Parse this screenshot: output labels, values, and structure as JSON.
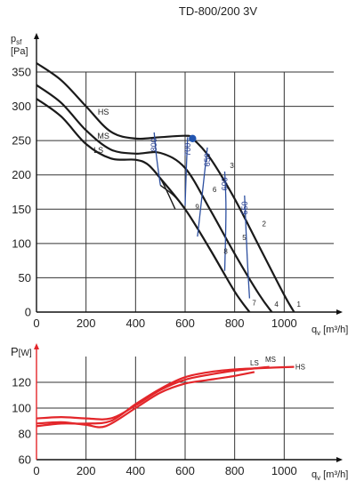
{
  "title": "TD-800/200 3V",
  "colors": {
    "curve": "#1a1a1a",
    "power": "#e3262a",
    "power_axis": "#e3262a",
    "iso": "#2c4fa0",
    "grid": "#333333",
    "point": "#2255b0"
  },
  "chart_data": [
    {
      "type": "line",
      "ylabel": "p",
      "ylabel_sub": "sf",
      "yunit": "[Pa]",
      "xlabel": "q",
      "xlabel_sub": "v",
      "xunit": "[m³/h]",
      "xlim": [
        0,
        1200
      ],
      "ylim": [
        0,
        350
      ],
      "x_ticks": [
        "0",
        "200",
        "400",
        "600",
        "800",
        "1000"
      ],
      "y_ticks": [
        "0",
        "50",
        "100",
        "150",
        "200",
        "250",
        "300",
        "350"
      ],
      "grid": true,
      "series": [
        {
          "name": "HS",
          "x": [
            0,
            100,
            200,
            300,
            400,
            500,
            600,
            630,
            700,
            800,
            900,
            1000,
            1040
          ],
          "y": [
            363,
            338,
            300,
            263,
            253,
            255,
            257,
            253,
            225,
            165,
            95,
            25,
            0
          ]
        },
        {
          "name": "MS",
          "x": [
            0,
            100,
            200,
            300,
            400,
            500,
            600,
            700,
            800,
            900,
            950
          ],
          "y": [
            331,
            305,
            265,
            237,
            231,
            232,
            210,
            150,
            85,
            25,
            0
          ]
        },
        {
          "name": "LS",
          "x": [
            0,
            100,
            200,
            300,
            400,
            450,
            500,
            600,
            700,
            800,
            860
          ],
          "y": [
            311,
            285,
            245,
            224,
            222,
            215,
            195,
            150,
            92,
            30,
            0
          ]
        }
      ],
      "segments": [
        {
          "x": [
            500,
            600,
            800,
            860
          ],
          "y": [
            185,
            150,
            30,
            0
          ]
        },
        {
          "x": [
            450,
            500,
            560
          ],
          "y": [
            215,
            195,
            150
          ]
        }
      ],
      "iso_lines": [
        {
          "label": "800",
          "x": [
            475,
            485,
            500
          ],
          "y": [
            262,
            225,
            185
          ]
        },
        {
          "label": "700",
          "x": [
            610,
            605,
            600
          ],
          "y": [
            255,
            210,
            155
          ]
        },
        {
          "label": "650",
          "x": [
            690,
            670,
            650
          ],
          "y": [
            240,
            175,
            110
          ]
        },
        {
          "label": "600",
          "x": [
            760,
            765,
            760
          ],
          "y": [
            205,
            150,
            60
          ]
        },
        {
          "label": "550",
          "x": [
            840,
            850,
            860
          ],
          "y": [
            170,
            85,
            20
          ]
        }
      ],
      "point_numbers": [
        {
          "label": "1",
          "x": 1040,
          "y": 8
        },
        {
          "label": "2",
          "x": 900,
          "y": 125
        },
        {
          "label": "3",
          "x": 770,
          "y": 210
        },
        {
          "label": "4",
          "x": 950,
          "y": 8
        },
        {
          "label": "5",
          "x": 820,
          "y": 105
        },
        {
          "label": "6",
          "x": 700,
          "y": 175
        },
        {
          "label": "7",
          "x": 860,
          "y": 10
        },
        {
          "label": "8",
          "x": 745,
          "y": 85
        },
        {
          "label": "9",
          "x": 630,
          "y": 150
        }
      ],
      "duty_point": {
        "x": 630,
        "y": 253
      },
      "curve_labels": [
        {
          "name": "HS",
          "x": 270,
          "y": 288
        },
        {
          "name": "MS",
          "x": 270,
          "y": 253
        },
        {
          "name": "LS",
          "x": 250,
          "y": 232
        }
      ]
    },
    {
      "type": "line",
      "ylabel": "P",
      "yunit": "[W]",
      "xlabel": "q",
      "xlabel_sub": "v",
      "xunit": "[m³/h]",
      "xlim": [
        0,
        1200
      ],
      "ylim": [
        60,
        140
      ],
      "x_ticks": [
        "0",
        "200",
        "400",
        "600",
        "800",
        "1000"
      ],
      "y_ticks": [
        "60",
        "80",
        "100",
        "120"
      ],
      "grid": true,
      "series": [
        {
          "name": "LS",
          "x": [
            0,
            100,
            200,
            280,
            400,
            500,
            600,
            700,
            800,
            880
          ],
          "y": [
            88,
            89,
            87,
            86,
            100,
            112,
            119,
            122,
            125,
            128
          ]
        },
        {
          "name": "MS",
          "x": [
            0,
            100,
            200,
            300,
            400,
            500,
            600,
            700,
            800,
            940
          ],
          "y": [
            92,
            93,
            92,
            92,
            102,
            114,
            122,
            126,
            129,
            132
          ]
        },
        {
          "name": "HS",
          "x": [
            0,
            100,
            200,
            300,
            400,
            500,
            600,
            700,
            800,
            900,
            1040
          ],
          "y": [
            86,
            88,
            88,
            90,
            103,
            115,
            124,
            128,
            130,
            131,
            132
          ]
        }
      ],
      "curve_labels": [
        {
          "name": "LS",
          "x": 880,
          "y": 133
        },
        {
          "name": "MS",
          "x": 945,
          "y": 136
        },
        {
          "name": "HS",
          "x": 1065,
          "y": 130
        }
      ]
    }
  ]
}
